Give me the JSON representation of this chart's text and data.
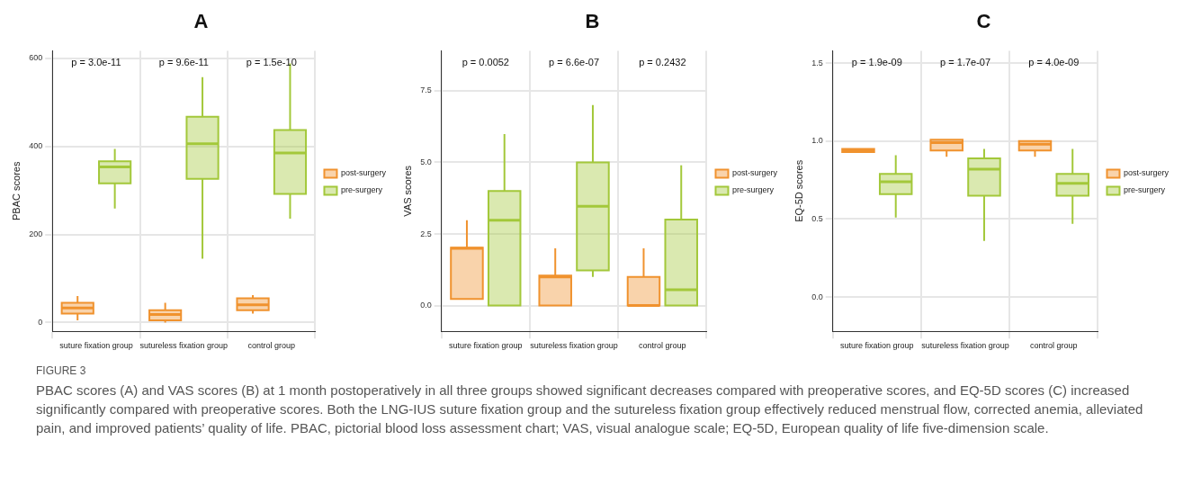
{
  "chart_data": [
    {
      "type": "box",
      "title": "A",
      "ylabel": "PBAC scores",
      "categories": [
        "suture fixation group",
        "sutureless fixation group",
        "control group"
      ],
      "ylim": [
        -20,
        617
      ],
      "yticks": [
        0,
        200,
        400,
        600
      ],
      "grid": true,
      "legend": "right",
      "series": [
        {
          "name": "post-surgery",
          "color": "#f0922e",
          "boxes": [
            {
              "low": 5,
              "q1": 20,
              "median": 33,
              "q3": 45,
              "high": 60
            },
            {
              "low": 0,
              "q1": 5,
              "median": 18,
              "q3": 28,
              "high": 45
            },
            {
              "low": 20,
              "q1": 28,
              "median": 40,
              "q3": 55,
              "high": 62
            }
          ]
        },
        {
          "name": "pre-surgery",
          "color": "#a3c83a",
          "boxes": [
            {
              "low": 259,
              "q1": 316,
              "median": 353,
              "q3": 366,
              "high": 394
            },
            {
              "low": 145,
              "q1": 326,
              "median": 406,
              "q3": 467,
              "high": 557
            },
            {
              "low": 236,
              "q1": 292,
              "median": 385,
              "q3": 437,
              "high": 588
            }
          ]
        }
      ],
      "annotations": [
        "p = 3.0e-11",
        "p = 9.6e-11",
        "p = 1.5e-10"
      ]
    },
    {
      "type": "box",
      "title": "B",
      "ylabel": "VAS scores",
      "categories": [
        "suture fixation group",
        "sutureless fixation group",
        "control group"
      ],
      "ylim": [
        -0.9,
        8.9
      ],
      "yticks": [
        {
          "value": 0,
          "label": "0.0"
        },
        {
          "value": 2.5,
          "label": "2.5"
        },
        {
          "value": 5,
          "label": "5.0"
        },
        {
          "value": 7.5,
          "label": "7.5"
        }
      ],
      "grid": true,
      "legend": "right",
      "series": [
        {
          "name": "post-surgery",
          "color": "#f0922e",
          "boxes": [
            {
              "low": 0.23,
              "q1": 0.23,
              "median": 2.0,
              "q3": 2.02,
              "high": 2.98
            },
            {
              "low": 0,
              "q1": 0,
              "median": 1.0,
              "q3": 1.05,
              "high": 2.0
            },
            {
              "low": 0,
              "q1": 0,
              "median": 0,
              "q3": 1.0,
              "high": 2.0
            }
          ]
        },
        {
          "name": "pre-surgery",
          "color": "#a3c83a",
          "boxes": [
            {
              "low": 0,
              "q1": 0,
              "median": 2.98,
              "q3": 4.0,
              "high": 5.99
            },
            {
              "low": 1.0,
              "q1": 1.23,
              "median": 3.47,
              "q3": 5.0,
              "high": 7.0
            },
            {
              "low": 0,
              "q1": 0,
              "median": 0.55,
              "q3": 3.0,
              "high": 4.9
            }
          ]
        }
      ],
      "annotations": [
        "p = 0.0052",
        "p = 6.6e-07",
        "p = 0.2432"
      ]
    },
    {
      "type": "box",
      "title": "C",
      "ylabel": "EQ-5D scores",
      "categories": [
        "suture fixation group",
        "sutureless fixation group",
        "control group"
      ],
      "ylim": [
        -0.22,
        1.58
      ],
      "yticks": [
        {
          "value": 0,
          "label": "0.0"
        },
        {
          "value": 0.5,
          "label": "0.5"
        },
        {
          "value": 1,
          "label": "1.0"
        },
        {
          "value": 1.5,
          "label": "1.5"
        }
      ],
      "grid": true,
      "legend": "right",
      "series": [
        {
          "name": "post-surgery",
          "color": "#f0922e",
          "boxes": [
            {
              "low": 0.93,
              "q1": 0.93,
              "median": 0.94,
              "q3": 0.95,
              "high": 0.95
            },
            {
              "low": 0.9,
              "q1": 0.94,
              "median": 0.99,
              "q3": 1.01,
              "high": 1.01
            },
            {
              "low": 0.9,
              "q1": 0.94,
              "median": 0.98,
              "q3": 1.0,
              "high": 1.0
            }
          ]
        },
        {
          "name": "pre-surgery",
          "color": "#a3c83a",
          "boxes": [
            {
              "low": 0.51,
              "q1": 0.66,
              "median": 0.74,
              "q3": 0.79,
              "high": 0.91
            },
            {
              "low": 0.36,
              "q1": 0.65,
              "median": 0.82,
              "q3": 0.89,
              "high": 0.95
            },
            {
              "low": 0.47,
              "q1": 0.65,
              "median": 0.73,
              "q3": 0.79,
              "high": 0.95
            }
          ]
        }
      ],
      "annotations": [
        "p = 1.9e-09",
        "p = 1.7e-07",
        "p = 4.0e-09"
      ]
    },
    {
      "type": "other",
      "annotations": [
        "FIGURE 3",
        "PBAC scores (A) and VAS scores (B) at 1 month postoperatively in all three groups showed significant decreases compared with preoperative scores, and EQ-5D scores (C) increased significantly compared with preoperative scores. Both the LNG-IUS suture fixation group and the sutureless fixation group effectively reduced menstrual flow, corrected anemia, alleviated pain, and improved patients’ quality of life. PBAC, pictorial blood loss assessment chart; VAS, visual analogue scale; EQ-5D, European quality of life five-dimension scale."
      ]
    }
  ]
}
